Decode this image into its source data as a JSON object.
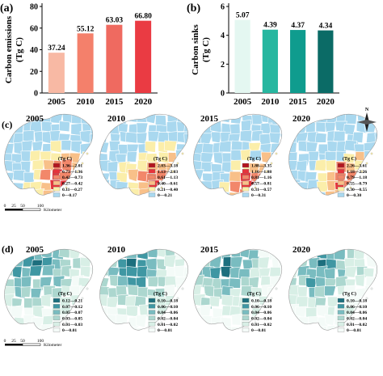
{
  "chart_data": [
    {
      "panel": "(a)",
      "type": "bar",
      "categories": [
        "2005",
        "2010",
        "2015",
        "2020"
      ],
      "values": [
        37.24,
        55.12,
        63.03,
        66.8
      ],
      "data_labels": [
        "37.24",
        "55.12",
        "63.03",
        "66.80"
      ],
      "ylabel": "Carbon emissions\n(Tg C)",
      "ylim": [
        0,
        80
      ],
      "yticks": [
        "0",
        "20",
        "40",
        "60",
        "80"
      ],
      "colors": [
        "#f8b9a4",
        "#f4806b",
        "#ef6a60",
        "#ea3b43"
      ],
      "grid": false
    },
    {
      "panel": "(b)",
      "type": "bar",
      "categories": [
        "2005",
        "2010",
        "2015",
        "2020"
      ],
      "values": [
        5.07,
        4.39,
        4.37,
        4.34
      ],
      "data_labels": [
        "5.07",
        "4.39",
        "4.37",
        "4.34"
      ],
      "ylabel": "Carbon sinks\n(Tg C)",
      "ylim": [
        0,
        6
      ],
      "yticks": [
        "0",
        "2",
        "4",
        "6"
      ],
      "colors": [
        "#e4f7f1",
        "#27b7a0",
        "#0f9c8e",
        "#0b6b66"
      ],
      "grid": false
    }
  ],
  "maps": {
    "row_c": {
      "panel": "(c)",
      "years": [
        "2005",
        "2010",
        "2015",
        "2020"
      ],
      "legend_title": "(Tg C)",
      "legends": [
        [
          "1.36—2.01",
          "0.73—1.36",
          "0.42—0.73",
          "0.27—0.42",
          "0.11—0.27",
          "0—0.17"
        ],
        [
          "2.03—3.18",
          "1.13—2.03",
          "0.61—1.13",
          "0.40—0.61",
          "0.21—0.40",
          "0—0.21"
        ],
        [
          "1.88—3.35",
          "1.16—1.88",
          "0.81—1.16",
          "0.57—0.81",
          "0.31—0.57",
          "0—0.31"
        ],
        [
          "2.26—3.61",
          "1.18—2.26",
          "0.79—1.18",
          "0.55—0.79",
          "0.30—0.55",
          "0—0.30"
        ]
      ],
      "colors": [
        "#b2151f",
        "#e5333c",
        "#f2876a",
        "#f8c089",
        "#fbeeaa",
        "#a9d8ef"
      ],
      "scalebar": [
        "0",
        "25",
        "50",
        "100"
      ],
      "scalebar_unit": "Kilometer"
    },
    "row_d": {
      "panel": "(d)",
      "years": [
        "2005",
        "2010",
        "2015",
        "2020"
      ],
      "legend_title": "(Tg C)",
      "legends": [
        [
          "0.12—0.21",
          "0.07—0.12",
          "0.05—0.07",
          "0.03—0.05",
          "0.01—0.03",
          "0—0.01"
        ],
        [
          "0.10—0.18",
          "0.06—0.10",
          "0.04—0.06",
          "0.02—0.04",
          "0.01—0.02",
          "0—0.01"
        ],
        [
          "0.10—0.18",
          "0.06—0.10",
          "0.04—0.06",
          "0.02—0.04",
          "0.01—0.02",
          "0—0.01"
        ],
        [
          "0.10—0.18",
          "0.06—0.10",
          "0.04—0.06",
          "0.02—0.04",
          "0.01—0.02",
          "0—0.01"
        ]
      ],
      "colors": [
        "#1d6f7e",
        "#3f97a3",
        "#79bcc0",
        "#acd7cf",
        "#d8efe6",
        "#f4fbf8"
      ],
      "scalebar": [
        "0",
        "25",
        "50",
        "100"
      ],
      "scalebar_unit": "Kilometer"
    },
    "north_arrow": "N"
  }
}
